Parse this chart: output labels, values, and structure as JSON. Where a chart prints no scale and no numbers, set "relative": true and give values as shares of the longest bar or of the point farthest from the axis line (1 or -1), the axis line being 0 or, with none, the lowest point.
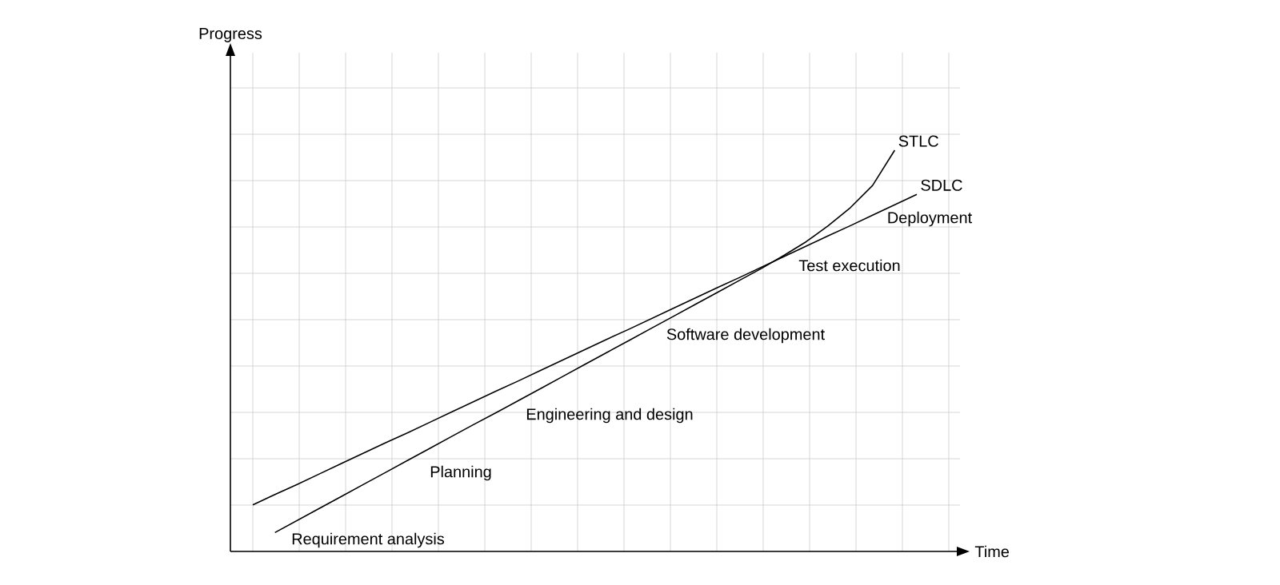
{
  "chart_data": {
    "type": "line",
    "relative": true,
    "xlabel": "Time",
    "grid": true,
    "categories": [
      null,
      null,
      null,
      null,
      null,
      null,
      null,
      null,
      null,
      null,
      null,
      null,
      null,
      null,
      null,
      null,
      null,
      null,
      null,
      null,
      null,
      null,
      null,
      null,
      null,
      null,
      null,
      null,
      null,
      null,
      null
    ],
    "series": [
      {
        "name": "STLC",
        "color": "#000000",
        "values": [
          null,
          0.047,
          0.077,
          0.107,
          0.137,
          0.167,
          0.197,
          0.227,
          0.257,
          0.287,
          0.317,
          0.346,
          0.376,
          0.406,
          0.436,
          0.466,
          0.496,
          0.526,
          0.556,
          0.586,
          0.616,
          0.646,
          0.676,
          0.706,
          0.738,
          0.772,
          0.812,
          0.857,
          0.912,
          1.0,
          null
        ]
      },
      {
        "name": "SDLC",
        "color": "#000000",
        "values": [
          0.116,
          0.142,
          0.167,
          0.193,
          0.219,
          0.245,
          0.271,
          0.296,
          0.322,
          0.348,
          0.374,
          0.4,
          0.425,
          0.451,
          0.477,
          0.503,
          0.529,
          0.554,
          0.58,
          0.606,
          0.632,
          0.658,
          0.683,
          0.709,
          0.735,
          0.761,
          0.787,
          0.812,
          0.838,
          0.864,
          0.89
        ]
      }
    ],
    "annotations": [
      "Requirement analysis",
      "Planning",
      "Engineering and design",
      "Software development",
      "Test execution",
      "Deployment",
      "Progress"
    ]
  }
}
